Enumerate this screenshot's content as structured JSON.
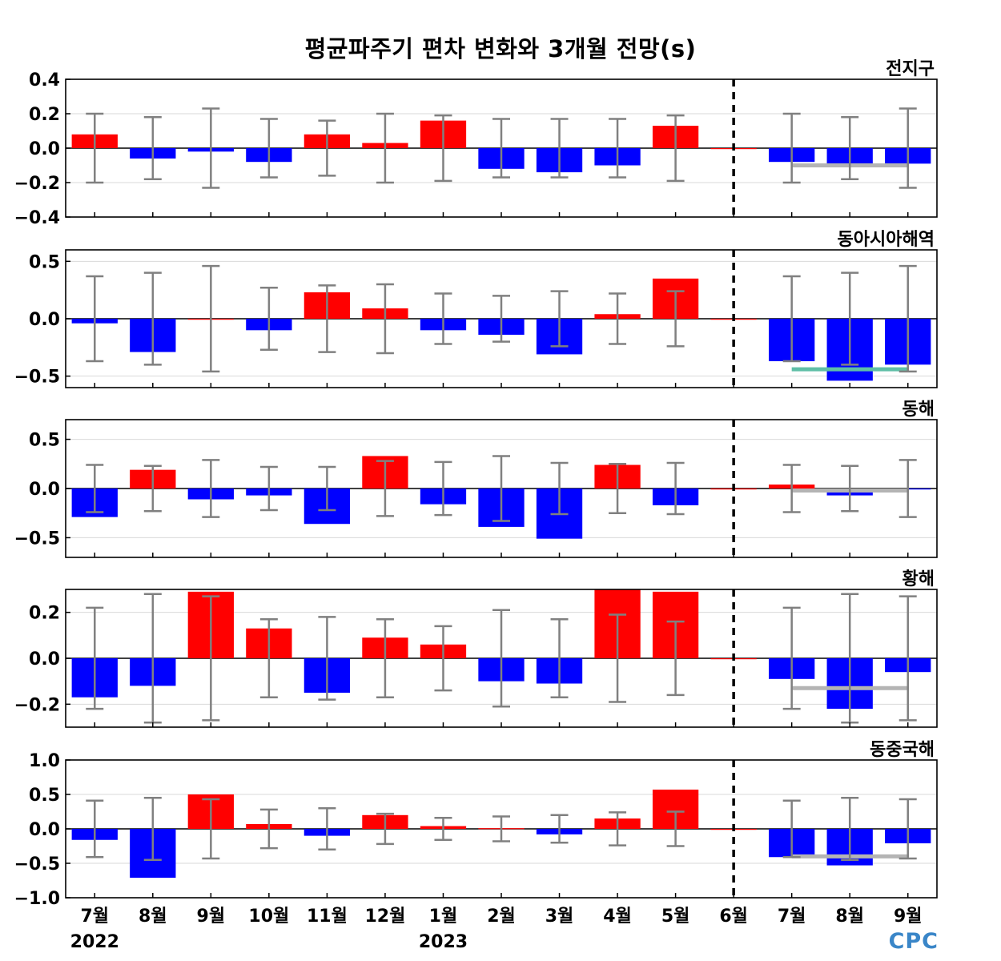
{
  "title": "평균파주기 편차 변화와 3개월 전망(s)",
  "logo": "CPC",
  "chart_data": {
    "type": "bar",
    "categories": [
      "7월",
      "8월",
      "9월",
      "10월",
      "11월",
      "12월",
      "1월",
      "2월",
      "3월",
      "4월",
      "5월",
      "6월",
      "7월",
      "8월",
      "9월"
    ],
    "year_labels": [
      {
        "category_index": 0,
        "label": "2022"
      },
      {
        "category_index": 6,
        "label": "2023"
      }
    ],
    "forecast_divider_category_index": 11,
    "colors": {
      "positive": "#ff0000",
      "negative": "#0000ff",
      "error_bar": "#808080",
      "zero_line": "#000000"
    },
    "panels": [
      {
        "region": "전지구",
        "ylim": [
          -0.4,
          0.4
        ],
        "yticks": [
          0.4,
          0.2,
          0.0,
          -0.2,
          -0.4
        ],
        "ytick_labels": [
          "0.4",
          "0.2",
          "0.0",
          "−0.2",
          "−0.4"
        ],
        "values": [
          0.08,
          -0.06,
          -0.02,
          -0.08,
          0.08,
          0.03,
          0.16,
          -0.12,
          -0.14,
          -0.1,
          0.13,
          0.0,
          -0.08,
          -0.11,
          -0.09
        ],
        "error_bar": [
          0.2,
          0.18,
          0.23,
          0.17,
          0.16,
          0.2,
          0.19,
          0.17,
          0.17,
          0.17,
          0.19,
          0.0,
          0.2,
          0.18,
          0.23
        ],
        "forecast_line": {
          "value": -0.1,
          "color": "#b4b4b4"
        }
      },
      {
        "region": "동아시아해역",
        "ylim": [
          -0.6,
          0.6
        ],
        "yticks": [
          0.5,
          0.0,
          -0.5
        ],
        "ytick_labels": [
          "0.5",
          "0.0",
          "−0.5"
        ],
        "values": [
          -0.04,
          -0.29,
          0.0,
          -0.1,
          0.23,
          0.09,
          -0.1,
          -0.14,
          -0.31,
          0.04,
          0.35,
          0.0,
          -0.37,
          -0.54,
          -0.4
        ],
        "error_bar": [
          0.37,
          0.4,
          0.46,
          0.27,
          0.29,
          0.3,
          0.22,
          0.2,
          0.24,
          0.22,
          0.24,
          0.0,
          0.37,
          0.4,
          0.46
        ],
        "forecast_line": {
          "value": -0.44,
          "color": "#5fbfa6"
        }
      },
      {
        "region": "동해",
        "ylim": [
          -0.7,
          0.7
        ],
        "yticks": [
          0.5,
          0.0,
          -0.5
        ],
        "ytick_labels": [
          "0.5",
          "0.0",
          "−0.5"
        ],
        "values": [
          -0.29,
          0.19,
          -0.11,
          -0.07,
          -0.36,
          0.33,
          -0.16,
          -0.39,
          -0.51,
          0.24,
          -0.17,
          0.0,
          0.04,
          -0.07,
          -0.01
        ],
        "error_bar": [
          0.24,
          0.23,
          0.29,
          0.22,
          0.22,
          0.28,
          0.27,
          0.33,
          0.26,
          0.25,
          0.26,
          0.0,
          0.24,
          0.23,
          0.29
        ],
        "forecast_line": {
          "value": -0.02,
          "color": "#b4b4b4"
        }
      },
      {
        "region": "황해",
        "ylim": [
          -0.3,
          0.3
        ],
        "yticks": [
          0.2,
          0.0,
          -0.2
        ],
        "ytick_labels": [
          "0.2",
          "0.0",
          "−0.2"
        ],
        "values": [
          -0.17,
          -0.12,
          0.29,
          0.13,
          -0.15,
          0.09,
          0.06,
          -0.1,
          -0.11,
          0.3,
          0.29,
          0.0,
          -0.09,
          -0.22,
          -0.06
        ],
        "error_bar": [
          0.22,
          0.28,
          0.27,
          0.17,
          0.18,
          0.17,
          0.14,
          0.21,
          0.17,
          0.19,
          0.16,
          0.0,
          0.22,
          0.28,
          0.27
        ],
        "forecast_line": {
          "value": -0.13,
          "color": "#b4b4b4"
        }
      },
      {
        "region": "동중국해",
        "ylim": [
          -1.0,
          1.0
        ],
        "yticks": [
          1.0,
          0.5,
          0.0,
          -0.5,
          -1.0
        ],
        "ytick_labels": [
          "1.0",
          "0.5",
          "0.0",
          "−0.5",
          "−1.0"
        ],
        "values": [
          -0.16,
          -0.71,
          0.5,
          0.07,
          -0.1,
          0.2,
          0.04,
          0.01,
          -0.08,
          0.15,
          0.57,
          0.0,
          -0.41,
          -0.53,
          -0.21
        ],
        "error_bar": [
          0.41,
          0.45,
          0.43,
          0.28,
          0.3,
          0.22,
          0.16,
          0.18,
          0.2,
          0.24,
          0.25,
          0.0,
          0.41,
          0.45,
          0.43
        ],
        "forecast_line": {
          "value": -0.4,
          "color": "#b4b4b4"
        }
      }
    ]
  }
}
